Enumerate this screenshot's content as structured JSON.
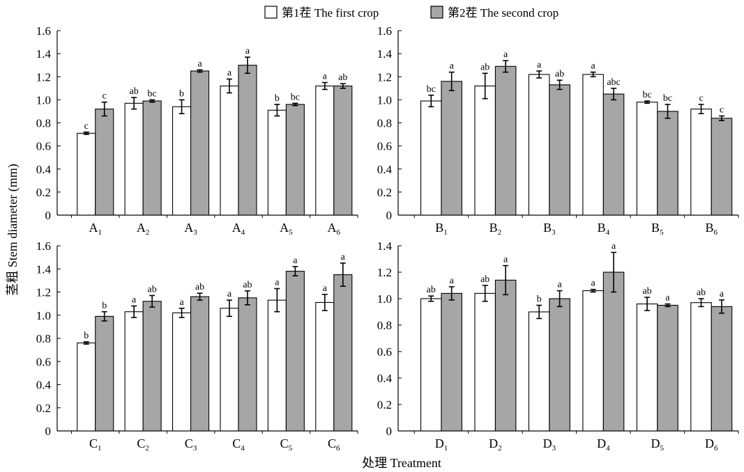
{
  "figure": {
    "ylabel": "茎粗 Stem diameter (mm)",
    "xlabel": "处理 Treatment"
  },
  "legend": {
    "first": "第1茬 The first crop",
    "second": "第2茬 The second crop",
    "placement": "top-center"
  },
  "colors": {
    "first_fill": "#ffffff",
    "second_fill": "#a6a6a6",
    "stroke": "#000000"
  },
  "chart_data": [
    {
      "type": "bar",
      "panel": "top-left",
      "categories": [
        [
          "A",
          "1"
        ],
        [
          "A",
          "2"
        ],
        [
          "A",
          "3"
        ],
        [
          "A",
          "4"
        ],
        [
          "A",
          "5"
        ],
        [
          "A",
          "6"
        ]
      ],
      "ylim": [
        0,
        1.6
      ],
      "yticks": [
        "0",
        "0.2",
        "0.4",
        "0.6",
        "0.8",
        "1.0",
        "1.2",
        "1.4",
        "1.6"
      ],
      "series": [
        {
          "name": "第1茬 The first crop",
          "values": [
            0.71,
            0.97,
            0.94,
            1.12,
            0.91,
            1.12
          ],
          "errors": [
            0.01,
            0.05,
            0.06,
            0.06,
            0.05,
            0.03
          ],
          "letters": [
            "c",
            "ab",
            "b",
            "a",
            "b",
            "a"
          ]
        },
        {
          "name": "第2茬 The second crop",
          "values": [
            0.92,
            0.99,
            1.25,
            1.3,
            0.96,
            1.12
          ],
          "errors": [
            0.06,
            0.01,
            0.01,
            0.07,
            0.01,
            0.02
          ],
          "letters": [
            "c",
            "bc",
            "a",
            "a",
            "bc",
            "ab"
          ]
        }
      ]
    },
    {
      "type": "bar",
      "panel": "top-right",
      "categories": [
        [
          "B",
          "1"
        ],
        [
          "B",
          "2"
        ],
        [
          "B",
          "3"
        ],
        [
          "B",
          "4"
        ],
        [
          "B",
          "5"
        ],
        [
          "B",
          "6"
        ]
      ],
      "ylim": [
        0,
        1.6
      ],
      "yticks": [
        "0",
        "0.2",
        "0.4",
        "0.6",
        "0.8",
        "1.0",
        "1.2",
        "1.4",
        "1.6"
      ],
      "series": [
        {
          "name": "第1茬 The first crop",
          "values": [
            0.99,
            1.12,
            1.22,
            1.22,
            0.98,
            0.92
          ],
          "errors": [
            0.05,
            0.11,
            0.03,
            0.02,
            0.01,
            0.04
          ],
          "letters": [
            "bc",
            "ab",
            "a",
            "a",
            "bc",
            "c"
          ]
        },
        {
          "name": "第2茬 The second crop",
          "values": [
            1.16,
            1.29,
            1.13,
            1.05,
            0.9,
            0.84
          ],
          "errors": [
            0.08,
            0.05,
            0.04,
            0.05,
            0.06,
            0.02
          ],
          "letters": [
            "a",
            "a",
            "ab",
            "abc",
            "bc",
            "c"
          ]
        }
      ]
    },
    {
      "type": "bar",
      "panel": "bottom-left",
      "categories": [
        [
          "C",
          "1"
        ],
        [
          "C",
          "2"
        ],
        [
          "C",
          "3"
        ],
        [
          "C",
          "4"
        ],
        [
          "C",
          "5"
        ],
        [
          "C",
          "6"
        ]
      ],
      "ylim": [
        0,
        1.6
      ],
      "yticks": [
        "0",
        "0.2",
        "0.4",
        "0.6",
        "0.8",
        "1.0",
        "1.2",
        "1.4",
        "1.6"
      ],
      "series": [
        {
          "name": "第1茬 The first crop",
          "values": [
            0.76,
            1.03,
            1.02,
            1.06,
            1.13,
            1.11
          ],
          "errors": [
            0.01,
            0.05,
            0.04,
            0.07,
            0.1,
            0.07
          ],
          "letters": [
            "b",
            "a",
            "a",
            "a",
            "a",
            "a"
          ]
        },
        {
          "name": "第2茬 The second crop",
          "values": [
            0.99,
            1.12,
            1.16,
            1.15,
            1.38,
            1.35
          ],
          "errors": [
            0.04,
            0.05,
            0.03,
            0.06,
            0.04,
            0.1
          ],
          "letters": [
            "b",
            "ab",
            "ab",
            "ab",
            "a",
            "a"
          ]
        }
      ]
    },
    {
      "type": "bar",
      "panel": "bottom-right",
      "categories": [
        [
          "D",
          "1"
        ],
        [
          "D",
          "2"
        ],
        [
          "D",
          "3"
        ],
        [
          "D",
          "4"
        ],
        [
          "D",
          "5"
        ],
        [
          "D",
          "6"
        ]
      ],
      "ylim": [
        0,
        1.4
      ],
      "yticks": [
        "0",
        "0.2",
        "0.4",
        "0.6",
        "0.8",
        "1.0",
        "1.2",
        "1.4"
      ],
      "series": [
        {
          "name": "第1茬 The first crop",
          "values": [
            1.0,
            1.04,
            0.9,
            1.06,
            0.96,
            0.97
          ],
          "errors": [
            0.02,
            0.06,
            0.05,
            0.01,
            0.05,
            0.03
          ],
          "letters": [
            "ab",
            "ab",
            "b",
            "a",
            "ab",
            "ab"
          ]
        },
        {
          "name": "第2茬 The second crop",
          "values": [
            1.04,
            1.14,
            1.0,
            1.2,
            0.95,
            0.94
          ],
          "errors": [
            0.05,
            0.11,
            0.06,
            0.15,
            0.01,
            0.05
          ],
          "letters": [
            "a",
            "a",
            "a",
            "a",
            "a",
            "a"
          ]
        }
      ]
    }
  ]
}
